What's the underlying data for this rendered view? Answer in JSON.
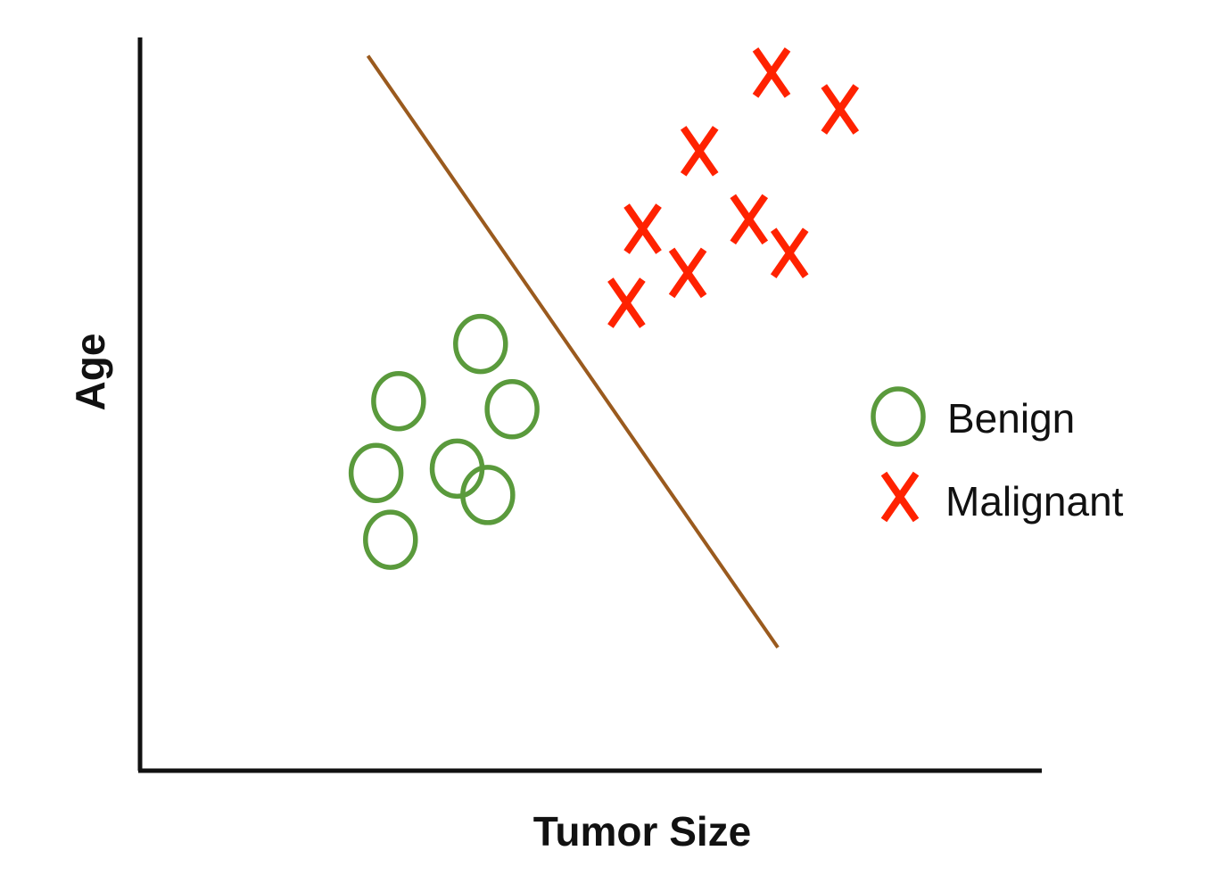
{
  "chart_data": {
    "type": "scatter",
    "title": "",
    "xlabel": "Tumor Size",
    "ylabel": "Age",
    "xlim": [
      0,
      100
    ],
    "ylim": [
      0,
      100
    ],
    "grid": false,
    "legend_position": "right",
    "series": [
      {
        "name": "Benign",
        "marker": "circle",
        "color": "#5a9a3c",
        "points": [
          {
            "x": 37.8,
            "y": 58.2
          },
          {
            "x": 28.7,
            "y": 50.4
          },
          {
            "x": 41.3,
            "y": 49.3
          },
          {
            "x": 26.2,
            "y": 40.6
          },
          {
            "x": 35.2,
            "y": 41.2
          },
          {
            "x": 38.6,
            "y": 37.6
          },
          {
            "x": 27.8,
            "y": 31.5
          }
        ]
      },
      {
        "name": "Malignant",
        "marker": "x",
        "color": "#ff2200",
        "points": [
          {
            "x": 70.1,
            "y": 95.2
          },
          {
            "x": 77.7,
            "y": 90.2
          },
          {
            "x": 62.1,
            "y": 84.5
          },
          {
            "x": 67.6,
            "y": 75.2
          },
          {
            "x": 55.8,
            "y": 73.9
          },
          {
            "x": 72.1,
            "y": 70.6
          },
          {
            "x": 60.8,
            "y": 67.9
          },
          {
            "x": 54.0,
            "y": 63.8
          }
        ]
      }
    ],
    "decision_boundary": {
      "color": "#9a5a1e",
      "points": [
        {
          "x": 25.3,
          "y": 97.5
        },
        {
          "x": 70.8,
          "y": 16.8
        }
      ]
    }
  }
}
